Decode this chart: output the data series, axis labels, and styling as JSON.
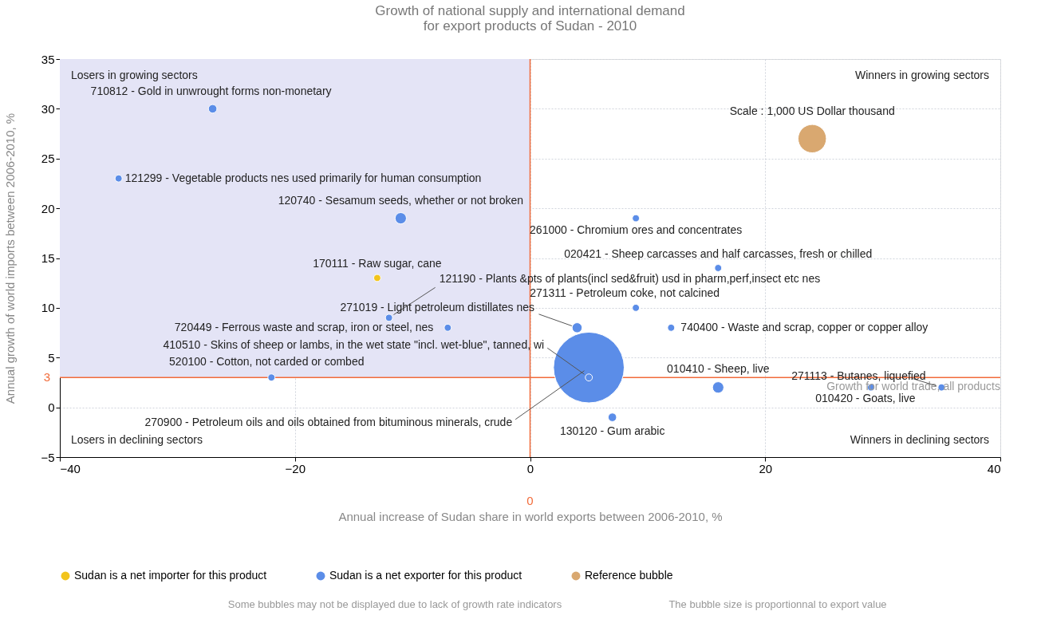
{
  "chart_data": {
    "type": "bubble",
    "title": "Growth of national supply and international demand\nfor export products of Sudan - 2010",
    "xlabel": "Annual increase of Sudan share in world exports between 2006-2010, %",
    "ylabel": "Annual growth of world imports between 2006-2010, %",
    "xlim": [
      -40,
      40
    ],
    "ylim": [
      -5,
      35
    ],
    "xticks": [
      -40,
      -20,
      0,
      20,
      40
    ],
    "yticks": [
      -5,
      0,
      5,
      10,
      15,
      20,
      25,
      30,
      35
    ],
    "grid": true,
    "legend": "bottom",
    "marker": "circle",
    "series": [
      {
        "name": "Sudan is a net importer for this product",
        "color": "#f2c41c",
        "x": [
          -13
        ],
        "values": [
          13
        ],
        "sizes": [
          0.01
        ]
      },
      {
        "name": "Sudan is a net exporter for this product",
        "color": "#5b8de8",
        "x": [
          -27,
          -35,
          -11,
          -12,
          4,
          -7,
          5,
          -22,
          5,
          9,
          16,
          9,
          12,
          16,
          35,
          29,
          7
        ],
        "values": [
          30,
          23,
          19,
          9,
          8,
          8,
          3,
          3,
          4,
          19,
          14,
          10,
          8,
          2,
          2,
          2,
          -1
        ],
        "sizes": [
          0.0144,
          0.01,
          0.0256,
          0.01,
          0.02,
          0.01,
          0.01,
          0.01,
          1,
          0.01,
          0.01,
          0.01,
          0.01,
          0.0256,
          0.01,
          0.01,
          0.0144
        ]
      },
      {
        "name": "Reference bubble",
        "color": "#d9a870",
        "x": [
          24
        ],
        "values": [
          27
        ],
        "sizes": [
          0.16
        ]
      }
    ],
    "ref_lines": [
      {
        "axis": "x",
        "value": 0,
        "label": "0",
        "color": "#f26b3a"
      },
      {
        "axis": "y",
        "value": 3,
        "label": "3",
        "color": "#f26b3a"
      }
    ],
    "annotations": [
      "Losers in growing sectors",
      "Winners in growing sectors",
      "Losers in declining sectors",
      "Winners in declining sectors",
      "Some bubbles may not be displayed due to lack of growth rate indicators",
      "The bubble size is proportionnal to export value",
      {
        "text": "Scale : 1,000 US Dollar thousand",
        "x": 24,
        "y": 27
      },
      {
        "text": "Growth for world trade, all products",
        "x": 40,
        "y": 3
      },
      {
        "text": "170111 - Raw sugar, cane",
        "x": -13,
        "y": 13
      },
      {
        "text": "710812 - Gold in unwrought forms non-monetary",
        "x": -27,
        "y": 30
      },
      {
        "text": "121299 - Vegetable products nes used primarily for human consumption",
        "x": -35,
        "y": 23
      },
      {
        "text": "120740 - Sesamum seeds, whether or not broken",
        "x": -11,
        "y": 19
      },
      {
        "text": "121190 - Plants &pts of plants(incl sed&fruit) usd in pharm,perf,insect etc nes",
        "x": -12,
        "y": 9
      },
      {
        "text": "271019 - Light petroleum distillates nes",
        "x": 4,
        "y": 8
      },
      {
        "text": "720449 - Ferrous waste and scrap, iron or steel, nes",
        "x": -7,
        "y": 8
      },
      {
        "text": "410510 - Skins of sheep or lambs, in the wet state \"incl. wet-blue\", tanned, wi",
        "x": 5,
        "y": 3
      },
      {
        "text": "520100 - Cotton, not carded or combed",
        "x": -22,
        "y": 3
      },
      {
        "text": "270900 - Petroleum oils and oils obtained from bituminous minerals, crude",
        "x": 5,
        "y": 4
      },
      {
        "text": "261000 - Chromium ores and concentrates",
        "x": 9,
        "y": 19
      },
      {
        "text": "020421 - Sheep carcasses and half carcasses, fresh or chilled",
        "x": 16,
        "y": 14
      },
      {
        "text": "271311 - Petroleum coke, not calcined",
        "x": 9,
        "y": 10
      },
      {
        "text": "740400 - Waste and scrap, copper or copper alloy",
        "x": 12,
        "y": 8
      },
      {
        "text": "010410 - Sheep, live",
        "x": 16,
        "y": 2
      },
      {
        "text": "271113 - Butanes, liquefied",
        "x": 35,
        "y": 2
      },
      {
        "text": "010420 - Goats, live",
        "x": 29,
        "y": 2
      },
      {
        "text": "130120 - Gum arabic",
        "x": 7,
        "y": -1
      }
    ]
  }
}
